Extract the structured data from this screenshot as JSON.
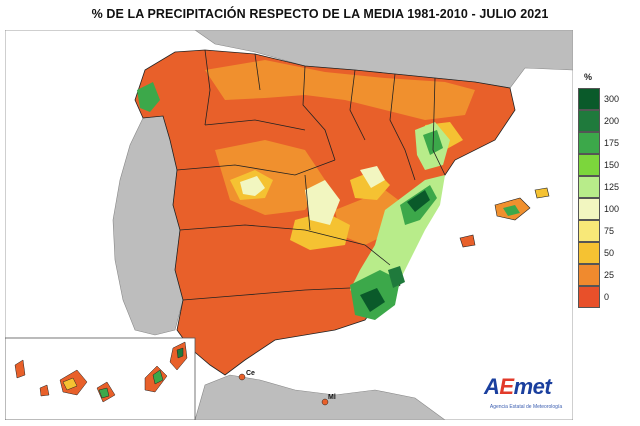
{
  "title": "% DE LA PRECIPITACIÓN RESPECTO DE LA MEDIA 1981-2010 - JULIO 2021",
  "legend": {
    "unit": "%",
    "entries": [
      {
        "label": "300",
        "color": "#0a5a2a"
      },
      {
        "label": "200",
        "color": "#1f7a3c"
      },
      {
        "label": "175",
        "color": "#3ca84a"
      },
      {
        "label": "150",
        "color": "#7cd63c"
      },
      {
        "label": "125",
        "color": "#b8ec8a"
      },
      {
        "label": "100",
        "color": "#f2f6c0"
      },
      {
        "label": "75",
        "color": "#f8e878"
      },
      {
        "label": "50",
        "color": "#f5c232"
      },
      {
        "label": "25",
        "color": "#f08a2e"
      },
      {
        "label": "0",
        "color": "#e8502a"
      }
    ]
  },
  "places": {
    "ceuta": "Ce",
    "melilla": "Ml"
  },
  "logo": {
    "text_a": "A",
    "text_e": "E",
    "text_rest": "met",
    "subtitle": "Agencia Estatal de Meteorología"
  },
  "colors": {
    "sea": "#ffffff",
    "neighbor_land": "#bdbdbd",
    "dry": "#e8602a",
    "low": "#f0902e",
    "mid": "#f5c232",
    "normal": "#f2f6c0",
    "wet": "#b8ec8a",
    "very_wet": "#3ca84a",
    "extreme": "#0a5a2a",
    "border": "#222222"
  }
}
